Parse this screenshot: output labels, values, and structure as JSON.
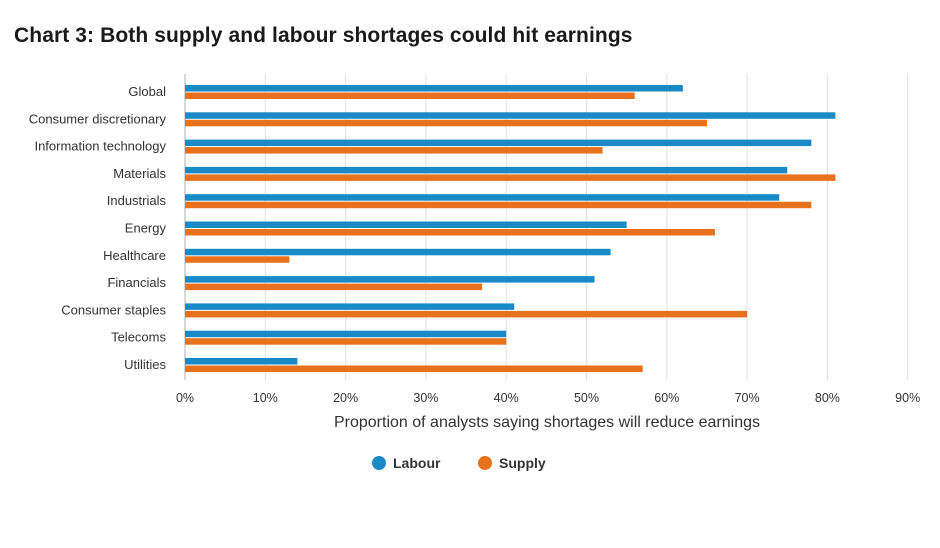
{
  "title": "Chart 3: Both supply and labour shortages could hit earnings",
  "chart_data": {
    "type": "bar",
    "orientation": "horizontal",
    "categories": [
      "Global",
      "Consumer discretionary",
      "Information technology",
      "Materials",
      "Industrials",
      "Energy",
      "Healthcare",
      "Financials",
      "Consumer staples",
      "Telecoms",
      "Utilities"
    ],
    "series": [
      {
        "name": "Labour",
        "color": "#1a8ac6",
        "values": [
          62,
          81,
          78,
          75,
          74,
          55,
          53,
          51,
          41,
          40,
          14
        ]
      },
      {
        "name": "Supply",
        "color": "#e8711e",
        "values": [
          56,
          65,
          52,
          81,
          78,
          66,
          13,
          37,
          70,
          40,
          57
        ]
      }
    ],
    "xlabel": "Proportion of analysts saying shortages will reduce earnings",
    "xlim": [
      0,
      90
    ],
    "xticks": [
      "0%",
      "10%",
      "20%",
      "30%",
      "40%",
      "50%",
      "60%",
      "70%",
      "80%",
      "90%"
    ],
    "grid": true,
    "legend_position": "bottom"
  }
}
